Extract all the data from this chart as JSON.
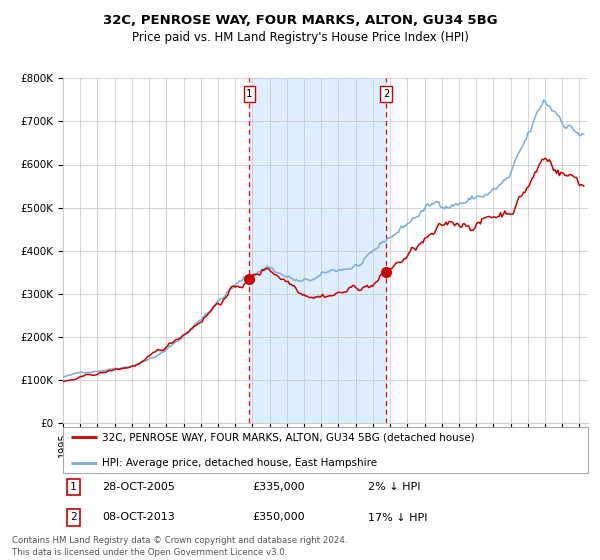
{
  "title": "32C, PENROSE WAY, FOUR MARKS, ALTON, GU34 5BG",
  "subtitle": "Price paid vs. HM Land Registry's House Price Index (HPI)",
  "ylim": [
    0,
    800000
  ],
  "yticks": [
    0,
    100000,
    200000,
    300000,
    400000,
    500000,
    600000,
    700000,
    800000
  ],
  "ytick_labels": [
    "£0",
    "£100K",
    "£200K",
    "£300K",
    "£400K",
    "£500K",
    "£600K",
    "£700K",
    "£800K"
  ],
  "hpi_color": "#7aaed6",
  "price_color": "#cc0000",
  "sale1_date_label": "28-OCT-2005",
  "sale1_price": 335000,
  "sale1_label": "2% ↓ HPI",
  "sale2_date_label": "08-OCT-2013",
  "sale2_price": 350000,
  "sale2_label": "17% ↓ HPI",
  "shade_color": "#ddeeff",
  "background_color": "#ffffff",
  "grid_color": "#cccccc",
  "legend_label_price": "32C, PENROSE WAY, FOUR MARKS, ALTON, GU34 5BG (detached house)",
  "legend_label_hpi": "HPI: Average price, detached house, East Hampshire",
  "footnote": "Contains HM Land Registry data © Crown copyright and database right 2024.\nThis data is licensed under the Open Government Licence v3.0."
}
